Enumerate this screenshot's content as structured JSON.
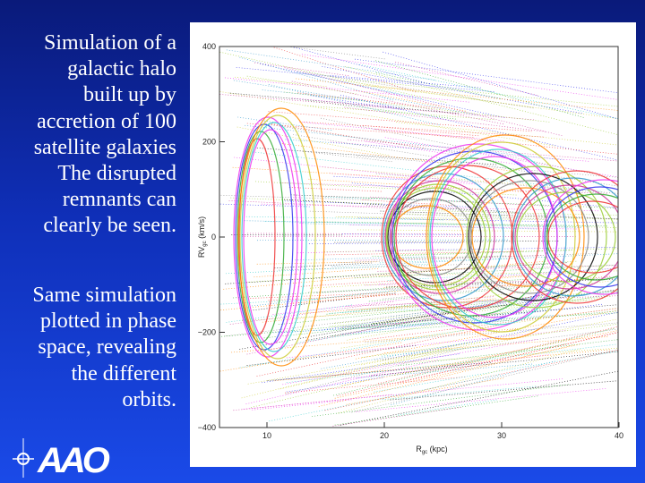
{
  "slide": {
    "paragraphs": [
      [
        "Simulation of a",
        "galactic halo",
        "built up by",
        "accretion of 100",
        "satellite galaxies",
        "The disrupted",
        "remnants can",
        "clearly be seen."
      ],
      [
        "Same simulation",
        "plotted in phase",
        "space, revealing",
        "the different",
        "orbits."
      ]
    ],
    "figure": {
      "y_label": {
        "main": "RV",
        "sub": "gc",
        "unit": "(km/s)"
      },
      "x_label": {
        "main": "R",
        "sub": "gc",
        "unit": "(kpc)"
      },
      "y_ticks": [
        "400",
        "200",
        "0",
        "−200",
        "−400"
      ],
      "x_ticks": [
        "10",
        "20",
        "30",
        "40"
      ]
    },
    "logo": "AAO"
  }
}
